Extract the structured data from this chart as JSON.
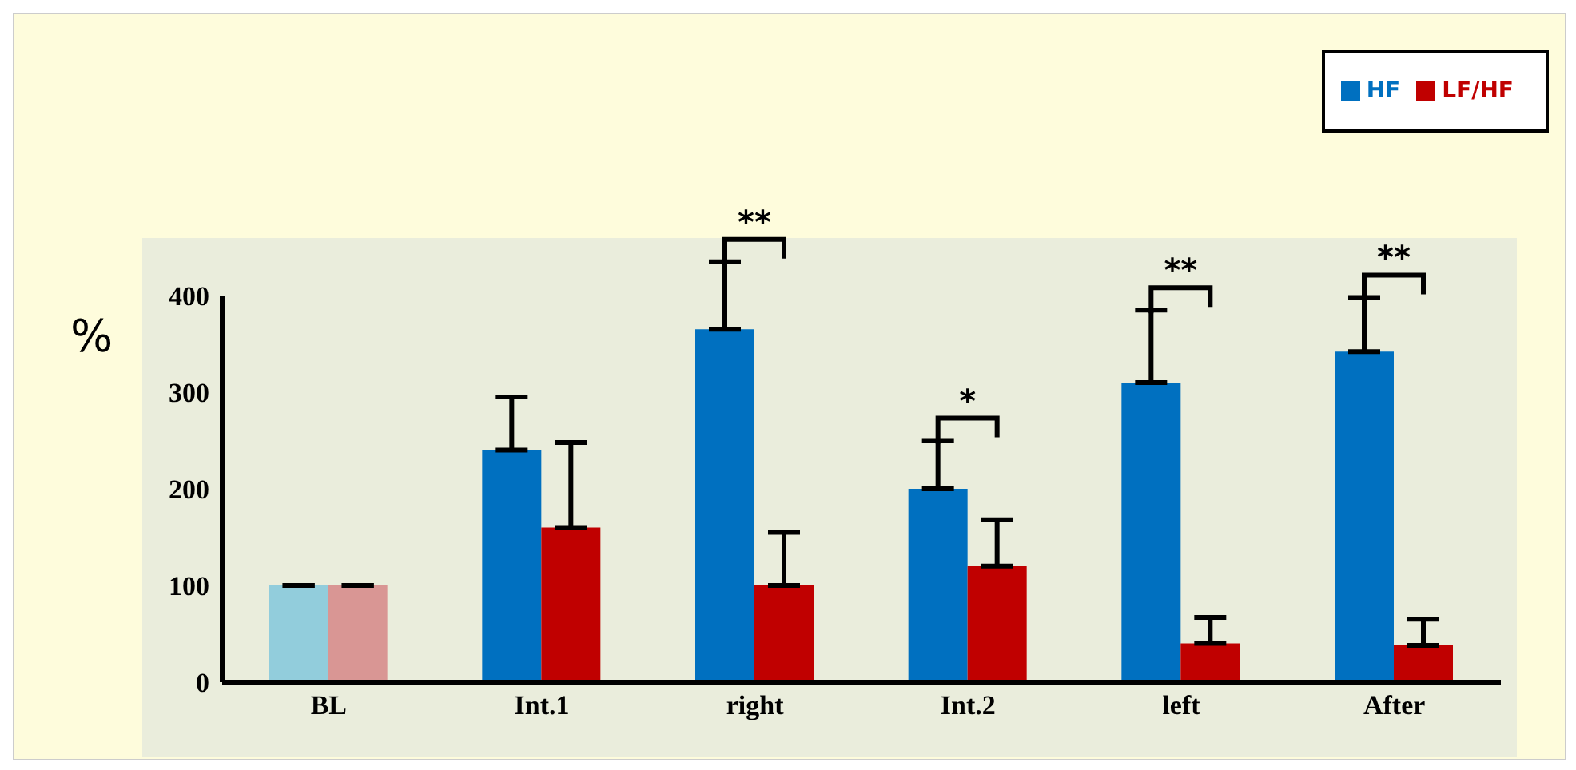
{
  "chart_data": {
    "type": "bar",
    "ylabel": "%",
    "categories": [
      "BL",
      "Int.1",
      "right",
      "Int.2",
      "left",
      "After"
    ],
    "series": [
      {
        "name": "HF",
        "color": "#0070c0",
        "colors": [
          "#92cddc",
          "#0070c0",
          "#0070c0",
          "#0070c0",
          "#0070c0",
          "#0070c0"
        ],
        "values": [
          100,
          240,
          365,
          200,
          310,
          342
        ],
        "errors": [
          null,
          [
            240,
            295
          ],
          [
            365,
            435
          ],
          [
            200,
            250
          ],
          [
            310,
            385
          ],
          [
            342,
            398
          ]
        ]
      },
      {
        "name": "LF/HF",
        "color": "#c00000",
        "colors": [
          "#d99694",
          "#c00000",
          "#c00000",
          "#c00000",
          "#c00000",
          "#c00000"
        ],
        "values": [
          100,
          160,
          100,
          120,
          40,
          38
        ],
        "errors": [
          null,
          [
            160,
            248
          ],
          [
            100,
            155
          ],
          [
            120,
            168
          ],
          [
            40,
            67
          ],
          [
            38,
            65
          ]
        ]
      }
    ],
    "ylim": [
      0,
      400
    ],
    "yticks": [
      0,
      100,
      200,
      300,
      400
    ],
    "grid": false,
    "legend": "top right",
    "annotations": [
      "**",
      "*",
      "**",
      "**"
    ]
  }
}
